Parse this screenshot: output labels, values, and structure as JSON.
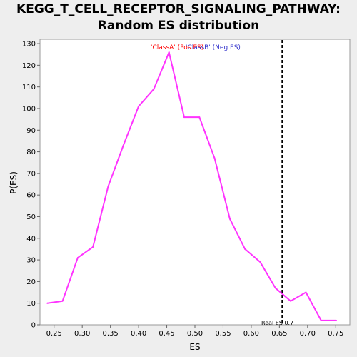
{
  "colors": {
    "line": "#ff33ff",
    "pos_label": "#ff0000",
    "neg_label": "#3333cc",
    "plot_bg": "#ffffff",
    "page_bg": "#eeeeee",
    "marker": "#000000"
  },
  "chart_data": {
    "type": "line",
    "title_lines": [
      "KEGG_T_CELL_RECEPTOR_SIGNALING_PATHWAY:",
      "Random ES distribution"
    ],
    "xlabel": "ES",
    "ylabel": "P(ES)",
    "xlim": [
      0.225,
      0.775
    ],
    "ylim": [
      0,
      132
    ],
    "xticks": [
      0.25,
      0.3,
      0.35,
      0.4,
      0.45,
      0.5,
      0.55,
      0.6,
      0.65,
      0.7,
      0.75
    ],
    "xtick_labels": [
      "0.25",
      "0.30",
      "0.35",
      "0.40",
      "0.45",
      "0.50",
      "0.55",
      "0.60",
      "0.65",
      "0.70",
      "0.75"
    ],
    "yticks": [
      0,
      10,
      20,
      30,
      40,
      50,
      60,
      70,
      80,
      90,
      100,
      110,
      120,
      130
    ],
    "ytick_labels": [
      "0",
      "10",
      "20",
      "30",
      "40",
      "50",
      "60",
      "70",
      "80",
      "90",
      "100",
      "110",
      "120",
      "130"
    ],
    "grid": false,
    "series": [
      {
        "x": [
          0.238,
          0.265,
          0.292,
          0.319,
          0.346,
          0.373,
          0.4,
          0.427,
          0.454,
          0.481,
          0.508,
          0.535,
          0.562,
          0.589,
          0.616,
          0.643,
          0.67,
          0.697,
          0.724,
          0.751
        ],
        "values": [
          10,
          11,
          31,
          36,
          64,
          83,
          101,
          109,
          126,
          96,
          96,
          77,
          49,
          35,
          29,
          17,
          11,
          15,
          2,
          2
        ]
      }
    ],
    "class_labels": {
      "pos": "'ClassA' (Pos ES)",
      "neg": "'ClassB' (Neg ES)"
    },
    "real_es": {
      "value": 0.655,
      "label": "Real ES 0.7"
    }
  }
}
